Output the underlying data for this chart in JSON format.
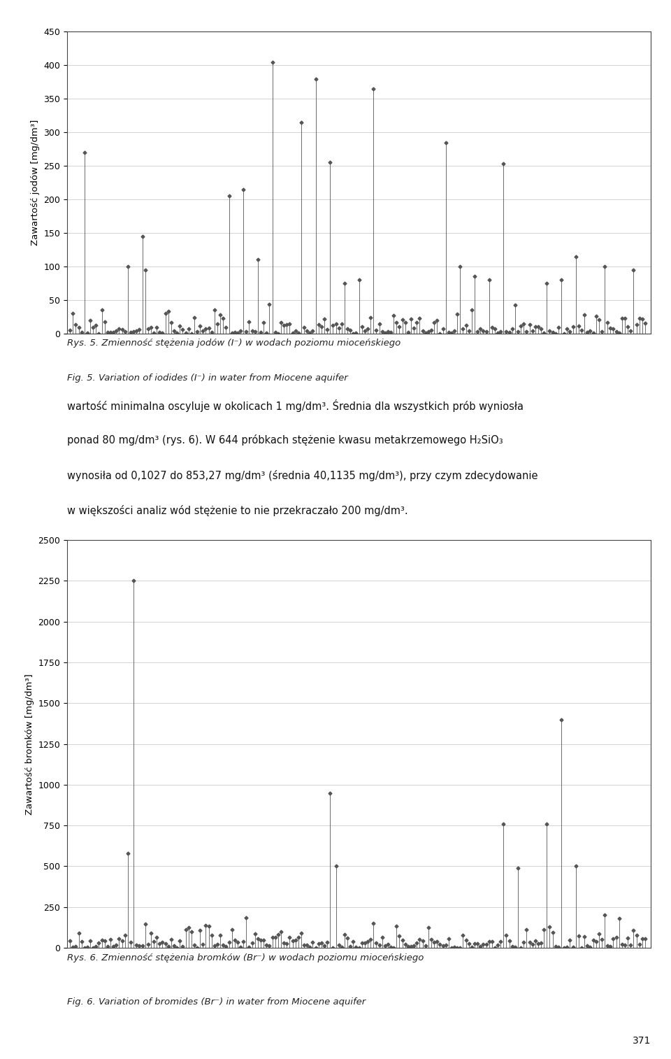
{
  "chart1": {
    "ylabel": "Zawartość jodów [mg/dm³]",
    "ylim": [
      0,
      450
    ],
    "yticks": [
      0,
      50,
      100,
      150,
      200,
      250,
      300,
      350,
      400,
      450
    ],
    "n_points": 200
  },
  "chart2": {
    "ylabel": "Zawartość bromków [mg/dm³]",
    "ylim": [
      0,
      2500
    ],
    "yticks": [
      0,
      250,
      500,
      750,
      1000,
      1250,
      1500,
      1750,
      2000,
      2250,
      2500
    ],
    "n_points": 200
  },
  "caption1_pl": "Rys. 5. Zmienność stężenia jodów (I⁻) w wodach poziomu mioceńskiego",
  "caption1_en": "Fig. 5. Variation of iodides (I⁻) in water from Miocene aquifer",
  "text_line1": "wartość minimalna oscyluje w okolicach 1 mg/dm³. Średnia dla wszystkich prób wyniosła",
  "text_line2": "ponad 80 mg/dm³ (rys. 6). W 644 próbkach stężenie kwasu metakrzemowego H₂SiO₃",
  "text_line3": "wynosiła od 0,1027 do 853,27 mg/dm³ (średnia 40,1135 mg/dm³), przy czym zdecydowanie",
  "text_line4": "w większości analiz wód stężenie to nie przekraczało 200 mg/dm³.",
  "caption2_pl": "Rys. 6. Zmienność stężenia bromków (Br⁻) w wodach poziomu mioceńskiego",
  "caption2_en": "Fig. 6. Variation of bromides (Br⁻) in water from Miocene aquifer",
  "page_number": "371",
  "marker_color": "#555555",
  "line_color": "#555555",
  "bg_color": "#ffffff",
  "grid_color": "#cccccc"
}
